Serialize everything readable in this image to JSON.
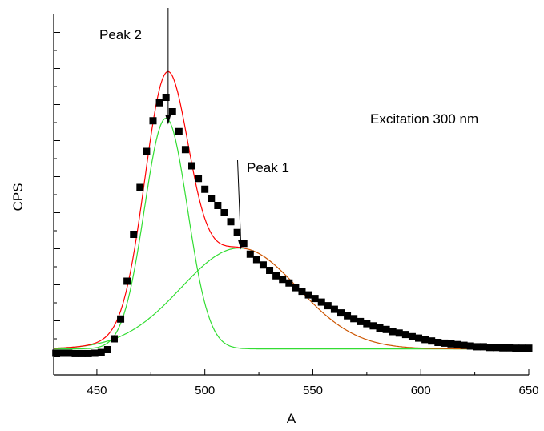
{
  "chart_data": {
    "type": "scatter",
    "title": "",
    "xlabel": "A",
    "ylabel": "CPS",
    "xlim": [
      430,
      650
    ],
    "ylim": [
      -0.5,
      9.5
    ],
    "grid": false,
    "legend": "none",
    "x_ticks": [
      450,
      500,
      550,
      600,
      650
    ],
    "x_tick_labels": [
      "450",
      "500",
      "550",
      "600",
      "650"
    ],
    "colors": {
      "data_points": "#000000",
      "fit_total": "#ff0000",
      "peak_components": "#33dd33",
      "component_2": "#cc5500"
    },
    "series": [
      {
        "type": "scatter",
        "values": [
          [
            431,
            0.1
          ],
          [
            434,
            0.1
          ],
          [
            437,
            0.1
          ],
          [
            440,
            0.09
          ],
          [
            443,
            0.09
          ],
          [
            446,
            0.09
          ],
          [
            449,
            0.1
          ],
          [
            452,
            0.12
          ],
          [
            455,
            0.2
          ],
          [
            458,
            0.5
          ],
          [
            461,
            1.05
          ],
          [
            464,
            2.1
          ],
          [
            467,
            3.4
          ],
          [
            470,
            4.7
          ],
          [
            473,
            5.7
          ],
          [
            476,
            6.55
          ],
          [
            479,
            7.05
          ],
          [
            482,
            7.2
          ],
          [
            485,
            6.8
          ],
          [
            488,
            6.25
          ],
          [
            491,
            5.75
          ],
          [
            494,
            5.3
          ],
          [
            497,
            4.95
          ],
          [
            500,
            4.65
          ],
          [
            503,
            4.4
          ],
          [
            506,
            4.2
          ],
          [
            509,
            4.0
          ],
          [
            512,
            3.75
          ],
          [
            515,
            3.45
          ],
          [
            518,
            3.15
          ],
          [
            521,
            2.85
          ],
          [
            524,
            2.7
          ],
          [
            527,
            2.55
          ],
          [
            530,
            2.4
          ],
          [
            533,
            2.25
          ],
          [
            536,
            2.15
          ],
          [
            539,
            2.05
          ],
          [
            542,
            1.92
          ],
          [
            545,
            1.82
          ],
          [
            548,
            1.72
          ],
          [
            551,
            1.62
          ],
          [
            554,
            1.52
          ],
          [
            557,
            1.42
          ],
          [
            560,
            1.32
          ],
          [
            563,
            1.22
          ],
          [
            566,
            1.14
          ],
          [
            569,
            1.06
          ],
          [
            572,
            0.98
          ],
          [
            575,
            0.92
          ],
          [
            578,
            0.86
          ],
          [
            581,
            0.8
          ],
          [
            584,
            0.76
          ],
          [
            587,
            0.7
          ],
          [
            590,
            0.66
          ],
          [
            593,
            0.62
          ],
          [
            596,
            0.56
          ],
          [
            599,
            0.52
          ],
          [
            602,
            0.48
          ],
          [
            605,
            0.44
          ],
          [
            608,
            0.4
          ],
          [
            611,
            0.38
          ],
          [
            614,
            0.36
          ],
          [
            617,
            0.34
          ],
          [
            620,
            0.32
          ],
          [
            623,
            0.3
          ],
          [
            626,
            0.28
          ],
          [
            629,
            0.28
          ],
          [
            632,
            0.26
          ],
          [
            635,
            0.26
          ],
          [
            638,
            0.25
          ],
          [
            641,
            0.25
          ],
          [
            644,
            0.24
          ],
          [
            647,
            0.24
          ],
          [
            650,
            0.24
          ]
        ]
      },
      {
        "type": "gaussian",
        "center": 482,
        "width": 10,
        "amplitude": 6.4,
        "baseline": 0.22,
        "color": "#33dd33"
      },
      {
        "type": "gaussian",
        "center": 516,
        "width": 27,
        "amplitude": 2.8,
        "baseline": 0.22,
        "color": "#33dd33",
        "tail_color": "#cc5500",
        "tail_from": 518
      },
      {
        "type": "sum",
        "baseline": 0.22,
        "color": "#ff0000",
        "until": 519
      }
    ],
    "annotations": [
      {
        "text": "Peak 2",
        "x": 483,
        "y": 6.4
      },
      {
        "text": "Peak 1",
        "x": 517,
        "y": 2.8
      },
      {
        "text": "Excitation 300 nm"
      }
    ]
  }
}
